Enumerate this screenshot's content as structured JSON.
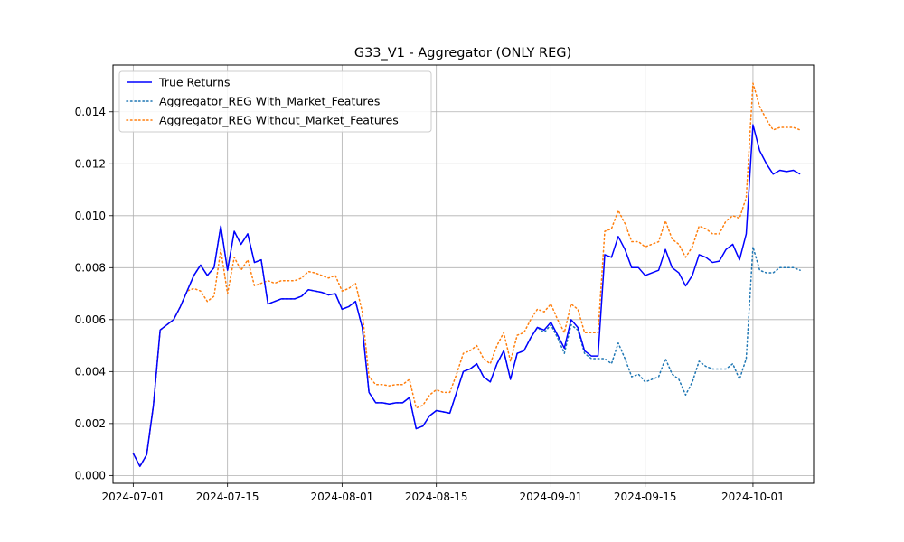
{
  "chart_data": {
    "type": "line",
    "title": "G33_V1 - Aggregator (ONLY REG)",
    "xlabel": "",
    "ylabel": "",
    "x_start": "2024-07-01",
    "x_step_days": 1,
    "xlim": [
      "2024-06-28",
      "2024-10-10"
    ],
    "ylim": [
      -0.0003,
      0.0158
    ],
    "x_ticks": [
      {
        "date": "2024-07-01",
        "label": "2024-07-01"
      },
      {
        "date": "2024-07-15",
        "label": "2024-07-15"
      },
      {
        "date": "2024-08-01",
        "label": "2024-08-01"
      },
      {
        "date": "2024-08-15",
        "label": "2024-08-15"
      },
      {
        "date": "2024-09-01",
        "label": "2024-09-01"
      },
      {
        "date": "2024-09-15",
        "label": "2024-09-15"
      },
      {
        "date": "2024-10-01",
        "label": "2024-10-01"
      }
    ],
    "y_ticks": [
      {
        "value": 0.0,
        "label": "0.000"
      },
      {
        "value": 0.002,
        "label": "0.002"
      },
      {
        "value": 0.004,
        "label": "0.004"
      },
      {
        "value": 0.006,
        "label": "0.006"
      },
      {
        "value": 0.008,
        "label": "0.008"
      },
      {
        "value": 0.01,
        "label": "0.010"
      },
      {
        "value": 0.012,
        "label": "0.012"
      },
      {
        "value": 0.014,
        "label": "0.014"
      }
    ],
    "grid": true,
    "legend_position": "top-left",
    "series": [
      {
        "name": "True Returns",
        "color": "#0000ff",
        "style": "solid",
        "values": [
          0.00085,
          0.00035,
          0.0008,
          0.0027,
          0.0056,
          0.0058,
          0.006,
          0.0065,
          0.0071,
          0.0077,
          0.0081,
          0.0077,
          0.008,
          0.0096,
          0.0079,
          0.0094,
          0.0089,
          0.0093,
          0.0082,
          0.0083,
          0.0066,
          0.0067,
          0.0068,
          0.0068,
          0.0068,
          0.0069,
          0.00715,
          0.0071,
          0.00705,
          0.00695,
          0.007,
          0.0064,
          0.0065,
          0.0067,
          0.0057,
          0.0032,
          0.0028,
          0.0028,
          0.00275,
          0.0028,
          0.0028,
          0.003,
          0.0018,
          0.0019,
          0.0023,
          0.0025,
          0.00245,
          0.0024,
          0.0032,
          0.004,
          0.0041,
          0.0043,
          0.0038,
          0.0036,
          0.0043,
          0.0048,
          0.0037,
          0.0047,
          0.0048,
          0.0053,
          0.0057,
          0.0056,
          0.0059,
          0.0054,
          0.0049,
          0.006,
          0.0057,
          0.0048,
          0.0046,
          0.0046,
          0.0085,
          0.0084,
          0.0092,
          0.0087,
          0.008,
          0.008,
          0.0077,
          0.0078,
          0.0079,
          0.0087,
          0.008,
          0.0078,
          0.0073,
          0.0077,
          0.0085,
          0.0084,
          0.0082,
          0.00825,
          0.0087,
          0.0089,
          0.0083,
          0.0093,
          0.0135,
          0.0125,
          0.012,
          0.0116,
          0.01175,
          0.0117,
          0.01175,
          0.0116
        ]
      },
      {
        "name": "Aggregator_REG With_Market_Features",
        "color": "#1f77b4",
        "style": "dotted",
        "values": [
          0.00085,
          0.00035,
          0.0008,
          0.0027,
          0.0056,
          0.0058,
          0.006,
          0.0065,
          0.0071,
          0.0077,
          0.0081,
          0.0077,
          0.008,
          0.0096,
          0.0079,
          0.0094,
          0.0089,
          0.0093,
          0.0082,
          0.0083,
          0.0066,
          0.0067,
          0.0068,
          0.0068,
          0.0068,
          0.0069,
          0.00715,
          0.0071,
          0.00705,
          0.00695,
          0.007,
          0.0064,
          0.0065,
          0.0067,
          0.0057,
          0.0032,
          0.0028,
          0.0028,
          0.00275,
          0.0028,
          0.0028,
          0.003,
          0.0018,
          0.0019,
          0.0023,
          0.0025,
          0.00245,
          0.0024,
          0.0032,
          0.004,
          0.0041,
          0.0043,
          0.0038,
          0.0036,
          0.0043,
          0.0048,
          0.0037,
          0.0047,
          0.0048,
          0.0053,
          0.0057,
          0.0055,
          0.0058,
          0.0053,
          0.0047,
          0.0058,
          0.0056,
          0.0047,
          0.0045,
          0.0045,
          0.0045,
          0.0043,
          0.0051,
          0.0045,
          0.0038,
          0.0039,
          0.0036,
          0.0037,
          0.0038,
          0.0045,
          0.0039,
          0.0037,
          0.0031,
          0.0036,
          0.0044,
          0.0042,
          0.0041,
          0.0041,
          0.0041,
          0.0043,
          0.0037,
          0.0045,
          0.0088,
          0.0079,
          0.0078,
          0.0078,
          0.008,
          0.008,
          0.008,
          0.0079
        ]
      },
      {
        "name": "Aggregator_REG Without_Market_Features",
        "color": "#ff7f0e",
        "style": "dotted",
        "values": [
          0.00085,
          0.00035,
          0.0008,
          0.0027,
          0.0056,
          0.0058,
          0.006,
          0.0065,
          0.0071,
          0.0072,
          0.0071,
          0.0067,
          0.0069,
          0.0087,
          0.007,
          0.0084,
          0.0079,
          0.0083,
          0.0073,
          0.0074,
          0.0075,
          0.0074,
          0.0075,
          0.0075,
          0.0075,
          0.0076,
          0.00785,
          0.0078,
          0.0077,
          0.0076,
          0.0077,
          0.0071,
          0.0072,
          0.0074,
          0.0063,
          0.0038,
          0.0035,
          0.0035,
          0.00345,
          0.0035,
          0.0035,
          0.0037,
          0.0026,
          0.0027,
          0.0031,
          0.0033,
          0.0032,
          0.0032,
          0.0039,
          0.0047,
          0.0048,
          0.005,
          0.0045,
          0.0043,
          0.005,
          0.0055,
          0.0044,
          0.0054,
          0.0055,
          0.006,
          0.0064,
          0.0063,
          0.0066,
          0.006,
          0.0055,
          0.0066,
          0.0064,
          0.0055,
          0.0055,
          0.0055,
          0.0094,
          0.0095,
          0.0102,
          0.0097,
          0.009,
          0.009,
          0.0088,
          0.0089,
          0.009,
          0.0098,
          0.0091,
          0.0089,
          0.0084,
          0.0088,
          0.0096,
          0.0095,
          0.0093,
          0.0093,
          0.0098,
          0.01,
          0.0099,
          0.0107,
          0.0151,
          0.0142,
          0.0137,
          0.0133,
          0.0134,
          0.0134,
          0.0134,
          0.0133
        ]
      }
    ]
  }
}
